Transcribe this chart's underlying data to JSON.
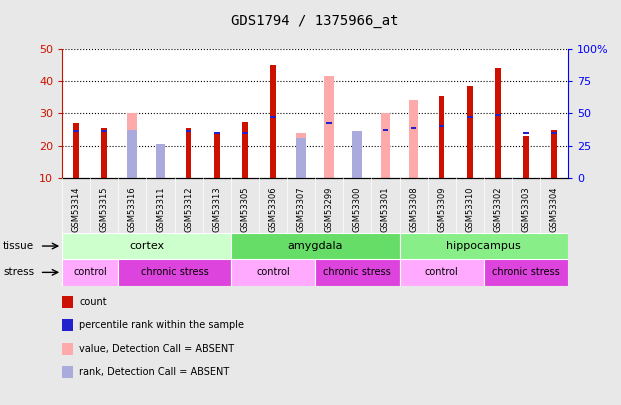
{
  "title": "GDS1794 / 1375966_at",
  "samples": [
    "GSM53314",
    "GSM53315",
    "GSM53316",
    "GSM53311",
    "GSM53312",
    "GSM53313",
    "GSM53305",
    "GSM53306",
    "GSM53307",
    "GSM53299",
    "GSM53300",
    "GSM53301",
    "GSM53308",
    "GSM53309",
    "GSM53310",
    "GSM53302",
    "GSM53303",
    "GSM53304"
  ],
  "red_bars": [
    27,
    25.5,
    0,
    0,
    25.5,
    23.5,
    27.5,
    45,
    0,
    0,
    0,
    0,
    0,
    35.5,
    38.5,
    44,
    23,
    25
  ],
  "pink_bars": [
    0,
    0,
    30,
    15,
    0,
    0,
    0,
    0,
    24,
    41.5,
    24.5,
    30,
    34,
    0,
    0,
    0,
    0,
    0
  ],
  "blue_bars": [
    24.5,
    24.5,
    0,
    0,
    24.5,
    24,
    24,
    29,
    0,
    27,
    0,
    25,
    25.5,
    26,
    29,
    29.5,
    24,
    24
  ],
  "lb_bars": [
    0,
    0,
    25,
    20.5,
    0,
    0,
    0,
    0,
    22.5,
    0,
    24.5,
    0,
    0,
    0,
    0,
    0,
    0,
    0
  ],
  "ylim_left": [
    10,
    50
  ],
  "ylim_right": [
    0,
    100
  ],
  "yticks_left": [
    10,
    20,
    30,
    40,
    50
  ],
  "yticks_right": [
    0,
    25,
    50,
    75,
    100
  ],
  "tissue_groups": [
    {
      "label": "cortex",
      "start": 0,
      "end": 6,
      "color": "#ccffcc"
    },
    {
      "label": "amygdala",
      "start": 6,
      "end": 12,
      "color": "#66dd66"
    },
    {
      "label": "hippocampus",
      "start": 12,
      "end": 18,
      "color": "#88ee88"
    }
  ],
  "stress_groups": [
    {
      "label": "control",
      "start": 0,
      "end": 2,
      "color": "#ffaaff"
    },
    {
      "label": "chronic stress",
      "start": 2,
      "end": 6,
      "color": "#dd44dd"
    },
    {
      "label": "control",
      "start": 6,
      "end": 9,
      "color": "#ffaaff"
    },
    {
      "label": "chronic stress",
      "start": 9,
      "end": 12,
      "color": "#dd44dd"
    },
    {
      "label": "control",
      "start": 12,
      "end": 15,
      "color": "#ffaaff"
    },
    {
      "label": "chronic stress",
      "start": 15,
      "end": 18,
      "color": "#dd44dd"
    }
  ],
  "red_color": "#cc1100",
  "pink_color": "#ffaaaa",
  "blue_color": "#2222cc",
  "lb_color": "#aaaadd",
  "bg_color": "#e8e8e8",
  "plot_bg": "#ffffff",
  "xtick_bg": "#cccccc"
}
